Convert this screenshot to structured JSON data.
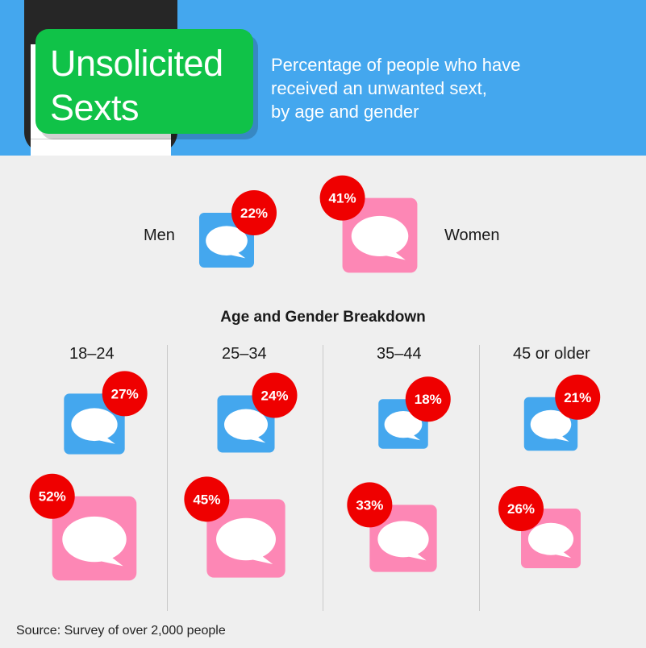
{
  "header": {
    "title_line1": "Unsolicited",
    "title_line2": "Sexts",
    "subtitle_line1": "Percentage of people who have",
    "subtitle_line2": "received an unwanted sext,",
    "subtitle_line3": "by age and gender"
  },
  "overall": {
    "men_label": "Men",
    "women_label": "Women"
  },
  "breakdown_heading": "Age and Gender Breakdown",
  "source": "Source: Survey of over 2,000 people",
  "colors": {
    "men": "#44a7ee",
    "women": "#fd87b5",
    "badge": "#ef0000",
    "header": "#44a7ee",
    "title_box": "#10c248"
  },
  "chart_data": [
    {
      "type": "bar",
      "title": "",
      "categories": [
        "Men",
        "Women"
      ],
      "values": [
        22,
        41
      ],
      "unit": "%"
    },
    {
      "type": "bar",
      "title": "Age and Gender Breakdown",
      "categories": [
        "18–24",
        "25–34",
        "35–44",
        "45 or older"
      ],
      "series": [
        {
          "values": [
            27,
            24,
            18,
            21
          ]
        },
        {
          "values": [
            52,
            45,
            33,
            26
          ]
        }
      ],
      "unit": "%"
    }
  ]
}
